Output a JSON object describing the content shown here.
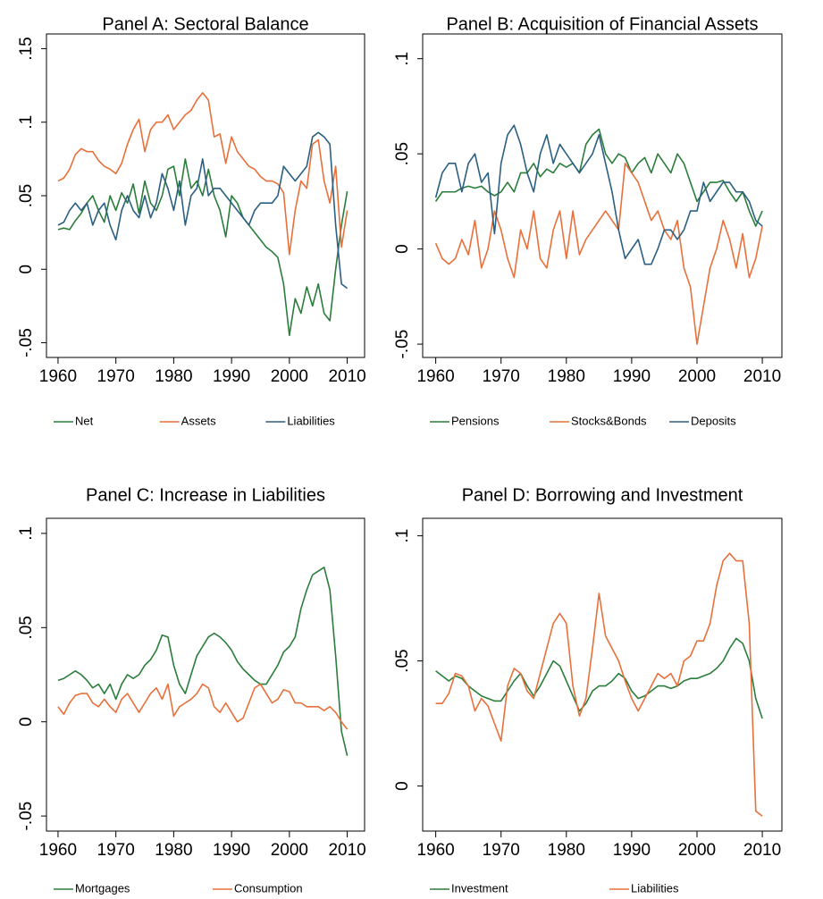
{
  "chart_data": [
    {
      "type": "line",
      "title": "Panel A: Sectoral Balance",
      "x": [
        1960,
        1961,
        1962,
        1963,
        1964,
        1965,
        1966,
        1967,
        1968,
        1969,
        1970,
        1971,
        1972,
        1973,
        1974,
        1975,
        1976,
        1977,
        1978,
        1979,
        1980,
        1981,
        1982,
        1983,
        1984,
        1985,
        1986,
        1987,
        1988,
        1989,
        1990,
        1991,
        1992,
        1993,
        1994,
        1995,
        1996,
        1997,
        1998,
        1999,
        2000,
        2001,
        2002,
        2003,
        2004,
        2005,
        2006,
        2007,
        2008,
        2009,
        2010
      ],
      "xlim": [
        1958,
        2013
      ],
      "xticks": [
        1960,
        1970,
        1980,
        1990,
        2000,
        2010
      ],
      "ylim": [
        -0.06,
        0.16
      ],
      "yticks": [
        {
          "value": -0.05,
          "label": "-.05"
        },
        0,
        {
          "value": 0.05,
          "label": ".05"
        },
        {
          "value": 0.1,
          "label": ".1"
        },
        {
          "value": 0.15,
          "label": ".15"
        }
      ],
      "series": [
        {
          "name": "Net",
          "color": "#2a7d3a",
          "values": [
            0.027,
            0.028,
            0.027,
            0.033,
            0.038,
            0.045,
            0.05,
            0.04,
            0.032,
            0.05,
            0.04,
            0.052,
            0.045,
            0.058,
            0.038,
            0.06,
            0.045,
            0.04,
            0.05,
            0.068,
            0.07,
            0.05,
            0.075,
            0.055,
            0.06,
            0.05,
            0.068,
            0.05,
            0.04,
            0.022,
            0.05,
            0.045,
            0.035,
            0.03,
            0.025,
            0.02,
            0.015,
            0.012,
            0.008,
            -0.01,
            -0.045,
            -0.02,
            -0.03,
            -0.012,
            -0.025,
            -0.01,
            -0.03,
            -0.035,
            0.0,
            0.03,
            0.053
          ]
        },
        {
          "name": "Assets",
          "color": "#e8703a",
          "values": [
            0.06,
            0.062,
            0.068,
            0.078,
            0.082,
            0.08,
            0.08,
            0.074,
            0.07,
            0.068,
            0.065,
            0.072,
            0.085,
            0.095,
            0.102,
            0.08,
            0.095,
            0.1,
            0.1,
            0.105,
            0.095,
            0.1,
            0.105,
            0.108,
            0.115,
            0.12,
            0.115,
            0.09,
            0.092,
            0.072,
            0.09,
            0.08,
            0.075,
            0.07,
            0.068,
            0.063,
            0.06,
            0.06,
            0.058,
            0.052,
            0.01,
            0.04,
            0.06,
            0.055,
            0.085,
            0.088,
            0.06,
            0.045,
            0.07,
            0.015,
            0.04
          ]
        },
        {
          "name": "Liabilities",
          "color": "#2b5f82",
          "values": [
            0.03,
            0.032,
            0.04,
            0.045,
            0.04,
            0.045,
            0.03,
            0.04,
            0.045,
            0.03,
            0.02,
            0.04,
            0.05,
            0.04,
            0.035,
            0.05,
            0.035,
            0.045,
            0.065,
            0.055,
            0.04,
            0.06,
            0.03,
            0.05,
            0.055,
            0.075,
            0.05,
            0.055,
            0.055,
            0.05,
            0.045,
            0.04,
            0.035,
            0.03,
            0.04,
            0.045,
            0.045,
            0.045,
            0.05,
            0.07,
            0.065,
            0.06,
            0.065,
            0.07,
            0.09,
            0.093,
            0.09,
            0.085,
            0.03,
            -0.01,
            -0.013
          ]
        }
      ]
    },
    {
      "type": "line",
      "title": "Panel B: Acquisition of Financial Assets",
      "x": [
        1960,
        1961,
        1962,
        1963,
        1964,
        1965,
        1966,
        1967,
        1968,
        1969,
        1970,
        1971,
        1972,
        1973,
        1974,
        1975,
        1976,
        1977,
        1978,
        1979,
        1980,
        1981,
        1982,
        1983,
        1984,
        1985,
        1986,
        1987,
        1988,
        1989,
        1990,
        1991,
        1992,
        1993,
        1994,
        1995,
        1996,
        1997,
        1998,
        1999,
        2000,
        2001,
        2002,
        2003,
        2004,
        2005,
        2006,
        2007,
        2008,
        2009,
        2010
      ],
      "xlim": [
        1958,
        2013
      ],
      "xticks": [
        1960,
        1970,
        1980,
        1990,
        2000,
        2010
      ],
      "ylim": [
        -0.057,
        0.113
      ],
      "yticks": [
        {
          "value": -0.05,
          "label": "-.05"
        },
        0,
        {
          "value": 0.05,
          "label": ".05"
        },
        {
          "value": 0.1,
          "label": ".1"
        }
      ],
      "series": [
        {
          "name": "Pensions",
          "color": "#2a7d3a",
          "values": [
            0.025,
            0.03,
            0.03,
            0.03,
            0.032,
            0.033,
            0.032,
            0.033,
            0.03,
            0.028,
            0.03,
            0.035,
            0.03,
            0.04,
            0.04,
            0.045,
            0.038,
            0.042,
            0.04,
            0.045,
            0.043,
            0.045,
            0.04,
            0.055,
            0.06,
            0.063,
            0.05,
            0.045,
            0.05,
            0.048,
            0.04,
            0.045,
            0.048,
            0.04,
            0.05,
            0.045,
            0.04,
            0.05,
            0.045,
            0.035,
            0.025,
            0.03,
            0.035,
            0.035,
            0.036,
            0.03,
            0.025,
            0.03,
            0.02,
            0.012,
            0.02
          ]
        },
        {
          "name": "Stocks&Bonds",
          "color": "#e8703a",
          "values": [
            0.003,
            -0.005,
            -0.008,
            -0.005,
            0.005,
            -0.003,
            0.015,
            -0.01,
            0.0,
            0.02,
            0.01,
            -0.005,
            -0.015,
            0.01,
            0.0,
            0.02,
            -0.005,
            -0.01,
            0.01,
            0.02,
            -0.005,
            0.02,
            -0.003,
            0.005,
            0.01,
            0.015,
            0.02,
            0.015,
            0.01,
            0.045,
            0.04,
            0.035,
            0.025,
            0.015,
            0.02,
            0.01,
            0.005,
            0.015,
            -0.01,
            -0.02,
            -0.05,
            -0.03,
            -0.01,
            0.0,
            0.015,
            0.005,
            -0.01,
            0.008,
            -0.015,
            -0.005,
            0.012
          ]
        },
        {
          "name": "Deposits",
          "color": "#2b5f82",
          "values": [
            0.027,
            0.04,
            0.045,
            0.045,
            0.03,
            0.045,
            0.05,
            0.035,
            0.04,
            0.008,
            0.045,
            0.06,
            0.065,
            0.055,
            0.04,
            0.03,
            0.05,
            0.06,
            0.045,
            0.055,
            0.05,
            0.045,
            0.04,
            0.045,
            0.05,
            0.06,
            0.045,
            0.03,
            0.01,
            -0.005,
            0.0,
            0.005,
            -0.008,
            -0.008,
            0.0,
            0.01,
            0.01,
            0.005,
            0.01,
            0.02,
            0.02,
            0.035,
            0.025,
            0.03,
            0.035,
            0.035,
            0.03,
            0.03,
            0.025,
            0.015,
            0.012
          ]
        }
      ]
    },
    {
      "type": "line",
      "title": "Panel C: Increase in Liabilities",
      "x": [
        1960,
        1961,
        1962,
        1963,
        1964,
        1965,
        1966,
        1967,
        1968,
        1969,
        1970,
        1971,
        1972,
        1973,
        1974,
        1975,
        1976,
        1977,
        1978,
        1979,
        1980,
        1981,
        1982,
        1983,
        1984,
        1985,
        1986,
        1987,
        1988,
        1989,
        1990,
        1991,
        1992,
        1993,
        1994,
        1995,
        1996,
        1997,
        1998,
        1999,
        2000,
        2001,
        2002,
        2003,
        2004,
        2005,
        2006,
        2007,
        2008,
        2009,
        2010
      ],
      "xlim": [
        1958,
        2013
      ],
      "xticks": [
        1960,
        1970,
        1980,
        1990,
        2000,
        2010
      ],
      "ylim": [
        -0.058,
        0.108
      ],
      "yticks": [
        {
          "value": -0.05,
          "label": "-.05"
        },
        0,
        {
          "value": 0.05,
          "label": ".05"
        },
        {
          "value": 0.1,
          "label": ".1"
        }
      ],
      "series": [
        {
          "name": "Mortgages",
          "color": "#2a7d3a",
          "values": [
            0.022,
            0.023,
            0.025,
            0.027,
            0.025,
            0.022,
            0.018,
            0.02,
            0.015,
            0.02,
            0.012,
            0.02,
            0.025,
            0.023,
            0.025,
            0.03,
            0.033,
            0.038,
            0.046,
            0.045,
            0.03,
            0.02,
            0.015,
            0.025,
            0.035,
            0.04,
            0.045,
            0.047,
            0.045,
            0.042,
            0.038,
            0.032,
            0.028,
            0.025,
            0.022,
            0.02,
            0.02,
            0.025,
            0.03,
            0.037,
            0.04,
            0.045,
            0.06,
            0.07,
            0.078,
            0.08,
            0.082,
            0.07,
            0.035,
            -0.005,
            -0.018
          ]
        },
        {
          "name": "Consumption",
          "color": "#e8703a",
          "values": [
            0.008,
            0.004,
            0.01,
            0.014,
            0.015,
            0.015,
            0.01,
            0.008,
            0.012,
            0.008,
            0.005,
            0.012,
            0.015,
            0.01,
            0.005,
            0.01,
            0.015,
            0.018,
            0.012,
            0.02,
            0.003,
            0.008,
            0.01,
            0.012,
            0.015,
            0.02,
            0.018,
            0.008,
            0.005,
            0.01,
            0.005,
            0.0,
            0.002,
            0.01,
            0.018,
            0.02,
            0.015,
            0.01,
            0.012,
            0.017,
            0.016,
            0.01,
            0.01,
            0.008,
            0.008,
            0.008,
            0.006,
            0.008,
            0.005,
            0.0,
            -0.004
          ]
        }
      ]
    },
    {
      "type": "line",
      "title": "Panel D: Borrowing and Investment",
      "x": [
        1960,
        1961,
        1962,
        1963,
        1964,
        1965,
        1966,
        1967,
        1968,
        1969,
        1970,
        1971,
        1972,
        1973,
        1974,
        1975,
        1976,
        1977,
        1978,
        1979,
        1980,
        1981,
        1982,
        1983,
        1984,
        1985,
        1986,
        1987,
        1988,
        1989,
        1990,
        1991,
        1992,
        1993,
        1994,
        1995,
        1996,
        1997,
        1998,
        1999,
        2000,
        2001,
        2002,
        2003,
        2004,
        2005,
        2006,
        2007,
        2008,
        2009,
        2010
      ],
      "xlim": [
        1958,
        2013
      ],
      "xticks": [
        1960,
        1970,
        1980,
        1990,
        2000,
        2010
      ],
      "ylim": [
        -0.018,
        0.107
      ],
      "yticks": [
        0,
        {
          "value": 0.05,
          "label": ".05"
        },
        {
          "value": 0.1,
          "label": ".1"
        }
      ],
      "series": [
        {
          "name": "Investment",
          "color": "#2a7d3a",
          "values": [
            0.046,
            0.044,
            0.042,
            0.044,
            0.043,
            0.04,
            0.038,
            0.036,
            0.035,
            0.034,
            0.034,
            0.038,
            0.042,
            0.045,
            0.04,
            0.036,
            0.04,
            0.045,
            0.05,
            0.048,
            0.042,
            0.036,
            0.03,
            0.033,
            0.038,
            0.04,
            0.04,
            0.042,
            0.045,
            0.043,
            0.038,
            0.035,
            0.036,
            0.038,
            0.04,
            0.04,
            0.039,
            0.04,
            0.042,
            0.043,
            0.043,
            0.044,
            0.045,
            0.047,
            0.05,
            0.055,
            0.059,
            0.057,
            0.05,
            0.035,
            0.027
          ]
        },
        {
          "name": "Liabilities",
          "color": "#e8703a",
          "values": [
            0.033,
            0.033,
            0.037,
            0.045,
            0.044,
            0.04,
            0.03,
            0.035,
            0.032,
            0.025,
            0.018,
            0.04,
            0.047,
            0.045,
            0.038,
            0.035,
            0.045,
            0.055,
            0.065,
            0.069,
            0.065,
            0.04,
            0.028,
            0.035,
            0.055,
            0.077,
            0.06,
            0.055,
            0.05,
            0.042,
            0.035,
            0.03,
            0.035,
            0.04,
            0.045,
            0.043,
            0.045,
            0.04,
            0.05,
            0.052,
            0.058,
            0.058,
            0.065,
            0.08,
            0.09,
            0.093,
            0.09,
            0.09,
            0.065,
            -0.01,
            -0.012
          ]
        }
      ]
    }
  ]
}
